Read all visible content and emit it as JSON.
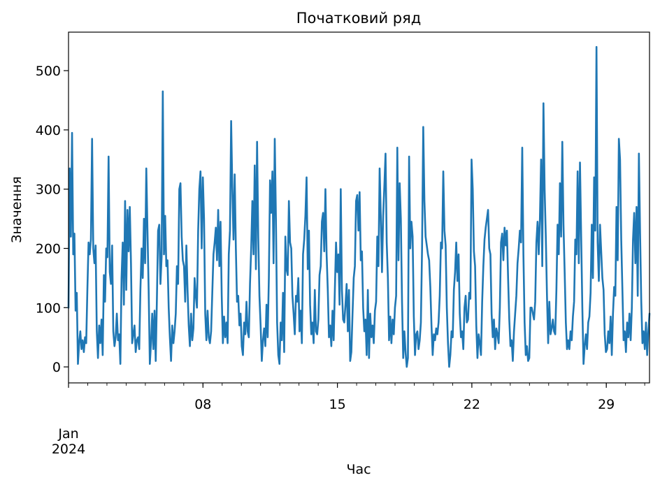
{
  "chart_data": {
    "type": "line",
    "title": "Початковий ряд",
    "xlabel": "Час",
    "ylabel": "Значення",
    "x_start": "2024-01-01 00:00",
    "x_end": "2024-01-31 06:00",
    "xlim": [
      "2024-01-01",
      "2024-01-31T06:00"
    ],
    "ylim": [
      -27,
      565
    ],
    "yticks": [
      {
        "value": 0,
        "label": "0"
      },
      {
        "value": 100,
        "label": "100"
      },
      {
        "value": 200,
        "label": "200"
      },
      {
        "value": 300,
        "label": "300"
      },
      {
        "value": 400,
        "label": "400"
      },
      {
        "value": 500,
        "label": "500"
      }
    ],
    "xticks": [
      {
        "value": "2024-01-01",
        "label": "Jan\n2024"
      },
      {
        "value": "2024-01-08",
        "label": "08"
      },
      {
        "value": "2024-01-15",
        "label": "15"
      },
      {
        "value": "2024-01-22",
        "label": "22"
      },
      {
        "value": "2024-01-29",
        "label": "29"
      }
    ],
    "color": "#1f77b4",
    "grid": false,
    "series": [
      {
        "values": [
          100,
          335,
          220,
          395,
          190,
          225,
          95,
          125,
          5,
          40,
          60,
          30,
          45,
          25,
          50,
          40,
          130,
          210,
          190,
          215,
          385,
          200,
          175,
          205,
          60,
          15,
          70,
          40,
          80,
          20,
          155,
          110,
          200,
          185,
          355,
          160,
          140,
          205,
          60,
          35,
          50,
          90,
          45,
          55,
          5,
          150,
          210,
          105,
          280,
          130,
          265,
          195,
          270,
          175,
          40,
          55,
          70,
          25,
          45,
          50,
          30,
          130,
          200,
          150,
          250,
          175,
          335,
          230,
          130,
          5,
          40,
          90,
          30,
          95,
          10,
          115,
          230,
          240,
          140,
          185,
          465,
          190,
          255,
          170,
          180,
          100,
          50,
          10,
          70,
          40,
          60,
          90,
          170,
          140,
          300,
          310,
          220,
          180,
          170,
          110,
          205,
          130,
          70,
          35,
          90,
          45,
          65,
          150,
          120,
          100,
          230,
          300,
          330,
          200,
          320,
          250,
          90,
          45,
          95,
          50,
          40,
          60,
          125,
          190,
          210,
          235,
          180,
          265,
          170,
          245,
          120,
          40,
          85,
          50,
          75,
          40,
          190,
          230,
          415,
          300,
          215,
          325,
          200,
          110,
          120,
          70,
          90,
          35,
          20,
          75,
          55,
          110,
          60,
          50,
          140,
          200,
          280,
          190,
          340,
          165,
          380,
          220,
          120,
          70,
          10,
          45,
          65,
          35,
          105,
          50,
          150,
          315,
          260,
          330,
          175,
          385,
          250,
          75,
          20,
          5,
          75,
          45,
          125,
          25,
          220,
          165,
          155,
          280,
          210,
          200,
          120,
          90,
          55,
          120,
          110,
          150,
          60,
          95,
          40,
          190,
          215,
          255,
          320,
          165,
          230,
          105,
          55,
          75,
          40,
          130,
          60,
          55,
          80,
          155,
          170,
          245,
          260,
          195,
          300,
          190,
          130,
          50,
          70,
          35,
          95,
          45,
          130,
          210,
          160,
          190,
          105,
          300,
          130,
          80,
          75,
          105,
          140,
          60,
          130,
          10,
          25,
          90,
          150,
          170,
          280,
          290,
          230,
          295,
          180,
          195,
          100,
          60,
          80,
          20,
          130,
          15,
          90,
          50,
          70,
          40,
          95,
          110,
          220,
          170,
          335,
          255,
          160,
          255,
          305,
          360,
          210,
          150,
          45,
          85,
          40,
          80,
          55,
          100,
          120,
          370,
          180,
          310,
          250,
          110,
          15,
          60,
          25,
          0,
          15,
          355,
          200,
          245,
          220,
          85,
          20,
          55,
          60,
          30,
          45,
          75,
          200,
          405,
          280,
          220,
          205,
          190,
          180,
          135,
          70,
          20,
          55,
          45,
          65,
          55,
          75,
          120,
          210,
          200,
          330,
          230,
          205,
          100,
          40,
          0,
          20,
          60,
          50,
          130,
          160,
          210,
          145,
          190,
          90,
          50,
          60,
          30,
          100,
          120,
          75,
          80,
          125,
          115,
          350,
          300,
          195,
          170,
          70,
          15,
          55,
          40,
          20,
          110,
          170,
          215,
          235,
          250,
          265,
          200,
          190,
          90,
          50,
          80,
          30,
          65,
          55,
          40,
          100,
          210,
          225,
          180,
          235,
          205,
          230,
          150,
          80,
          35,
          45,
          10,
          60,
          90,
          120,
          175,
          200,
          230,
          210,
          370,
          190,
          75,
          20,
          35,
          10,
          15,
          100,
          100,
          90,
          80,
          110,
          210,
          245,
          190,
          250,
          350,
          170,
          445,
          300,
          220,
          120,
          40,
          110,
          55,
          65,
          80,
          60,
          55,
          130,
          240,
          190,
          310,
          220,
          380,
          240,
          160,
          75,
          30,
          45,
          30,
          60,
          45,
          85,
          110,
          215,
          190,
          330,
          175,
          345,
          220,
          100,
          5,
          35,
          55,
          30,
          75,
          85,
          125,
          240,
          150,
          320,
          230,
          540,
          210,
          145,
          240,
          195,
          150,
          130,
          55,
          25,
          30,
          60,
          40,
          85,
          20,
          90,
          135,
          120,
          270,
          180,
          385,
          350,
          215,
          130,
          45,
          60,
          25,
          75,
          50,
          90,
          45,
          100,
          215,
          260,
          175,
          270,
          120,
          360,
          225,
          110,
          40,
          60,
          30,
          75,
          20,
          60,
          90
        ]
      }
    ]
  }
}
